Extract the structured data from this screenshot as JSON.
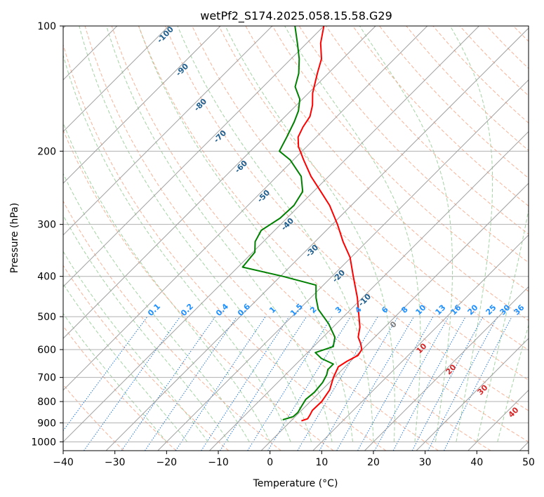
{
  "chart_data": {
    "type": "line",
    "title": "wetPf2_S174.2025.058.15.58.G29",
    "xlabel": "Temperature (°C)",
    "ylabel": "Pressure (hPa)",
    "xlim": [
      -40,
      50
    ],
    "ylim": [
      1050,
      100
    ],
    "y_scale": "log",
    "x_ticks": [
      -40,
      -30,
      -20,
      -10,
      0,
      10,
      20,
      30,
      40,
      50
    ],
    "x_tick_labels": [
      "−40",
      "−30",
      "−20",
      "−10",
      "0",
      "10",
      "20",
      "30",
      "40",
      "50"
    ],
    "y_ticks": [
      1000,
      900,
      800,
      700,
      600,
      500,
      400,
      300,
      200,
      100
    ],
    "y_tick_labels": [
      "1000",
      "900",
      "800",
      "700",
      "600",
      "500",
      "400",
      "300",
      "200",
      "100"
    ],
    "grid": true,
    "skew": true,
    "series": [
      {
        "role": "temperature",
        "color": "#ff0000",
        "points": [
          {
            "p": 890,
            "t": 2
          },
          {
            "p": 880,
            "t": 2.8
          },
          {
            "p": 860,
            "t": 2.5
          },
          {
            "p": 840,
            "t": 2.1
          },
          {
            "p": 800,
            "t": 2.2
          },
          {
            "p": 750,
            "t": 1.5
          },
          {
            "p": 700,
            "t": -0.2
          },
          {
            "p": 660,
            "t": -1.3
          },
          {
            "p": 640,
            "t": -0.7
          },
          {
            "p": 620,
            "t": 0.3
          },
          {
            "p": 600,
            "t": -0.1
          },
          {
            "p": 580,
            "t": -1.5
          },
          {
            "p": 560,
            "t": -3.2
          },
          {
            "p": 530,
            "t": -4.8
          },
          {
            "p": 500,
            "t": -7.0
          },
          {
            "p": 450,
            "t": -11.0
          },
          {
            "p": 400,
            "t": -15.9
          },
          {
            "p": 360,
            "t": -20.2
          },
          {
            "p": 330,
            "t": -24.6
          },
          {
            "p": 300,
            "t": -29.0
          },
          {
            "p": 270,
            "t": -34.2
          },
          {
            "p": 250,
            "t": -38.6
          },
          {
            "p": 230,
            "t": -43.4
          },
          {
            "p": 210,
            "t": -48.0
          },
          {
            "p": 195,
            "t": -51.6
          },
          {
            "p": 185,
            "t": -53.5
          },
          {
            "p": 175,
            "t": -54.5
          },
          {
            "p": 165,
            "t": -55.2
          },
          {
            "p": 155,
            "t": -56.9
          },
          {
            "p": 145,
            "t": -59.2
          },
          {
            "p": 130,
            "t": -62.1
          },
          {
            "p": 120,
            "t": -64.1
          },
          {
            "p": 110,
            "t": -67.3
          },
          {
            "p": 100,
            "t": -70.0
          }
        ]
      },
      {
        "role": "dewpoint",
        "color": "#008000",
        "points": [
          {
            "p": 885,
            "t": -1.8
          },
          {
            "p": 870,
            "t": -0.4
          },
          {
            "p": 850,
            "t": -0.3
          },
          {
            "p": 820,
            "t": -0.8
          },
          {
            "p": 790,
            "t": -1.3
          },
          {
            "p": 760,
            "t": -1.0
          },
          {
            "p": 720,
            "t": -1.3
          },
          {
            "p": 690,
            "t": -2.0
          },
          {
            "p": 670,
            "t": -2.8
          },
          {
            "p": 650,
            "t": -2.8
          },
          {
            "p": 630,
            "t": -6.2
          },
          {
            "p": 610,
            "t": -8.5
          },
          {
            "p": 590,
            "t": -6.2
          },
          {
            "p": 560,
            "t": -7.7
          },
          {
            "p": 520,
            "t": -11.5
          },
          {
            "p": 480,
            "t": -16.3
          },
          {
            "p": 450,
            "t": -19.0
          },
          {
            "p": 420,
            "t": -21.4
          },
          {
            "p": 400,
            "t": -29.5
          },
          {
            "p": 380,
            "t": -39.1
          },
          {
            "p": 350,
            "t": -39.6
          },
          {
            "p": 330,
            "t": -41.6
          },
          {
            "p": 310,
            "t": -42.6
          },
          {
            "p": 290,
            "t": -41.3
          },
          {
            "p": 270,
            "t": -41.1
          },
          {
            "p": 250,
            "t": -42.1
          },
          {
            "p": 230,
            "t": -45.3
          },
          {
            "p": 210,
            "t": -50.6
          },
          {
            "p": 200,
            "t": -54.4
          },
          {
            "p": 185,
            "t": -55.7
          },
          {
            "p": 170,
            "t": -57.2
          },
          {
            "p": 160,
            "t": -58.5
          },
          {
            "p": 150,
            "t": -60.5
          },
          {
            "p": 140,
            "t": -63.8
          },
          {
            "p": 130,
            "t": -65.7
          },
          {
            "p": 120,
            "t": -68.4
          },
          {
            "p": 110,
            "t": -71.8
          },
          {
            "p": 100,
            "t": -75.6
          }
        ]
      }
    ],
    "dry_adiabat_labels": [
      "-100",
      "-90",
      "-80",
      "-70",
      "-60",
      "-50",
      "-40",
      "-30",
      "-20",
      "-10"
    ],
    "dry_adiabat_values": [
      -100,
      -90,
      -80,
      -70,
      -60,
      -50,
      -40,
      -30,
      -20,
      -10
    ],
    "mixing_ratio_labels": [
      "0.1",
      "0.2",
      "0.4",
      "0.6",
      "1",
      "1.5",
      "2",
      "3",
      "4",
      "6",
      "8",
      "10",
      "13",
      "16",
      "20",
      "25",
      "30",
      "36"
    ],
    "mixing_ratio_values": [
      0.1,
      0.2,
      0.4,
      0.6,
      1,
      1.5,
      2,
      3,
      4,
      6,
      8,
      10,
      13,
      16,
      20,
      25,
      30,
      36
    ],
    "moist_adiabat_labels": [
      "0",
      "10",
      "20",
      "30",
      "40"
    ],
    "moist_adiabat_values": [
      0,
      10,
      20,
      30,
      40
    ],
    "colors": {
      "temperature": "#ff0000",
      "dewpoint": "#008000",
      "isotherm_grid": "#a0a0a0",
      "dry_adiabat": "#f5a080",
      "moist_adiabat": "#8cc88c",
      "mixing_ratio": "#1f78d4",
      "dry_adiabat_label": "#1f5f8f",
      "mixing_label": "#1e90ff",
      "moist_label": "#d62728",
      "moist_zero_label": "#7f7f7f"
    }
  }
}
